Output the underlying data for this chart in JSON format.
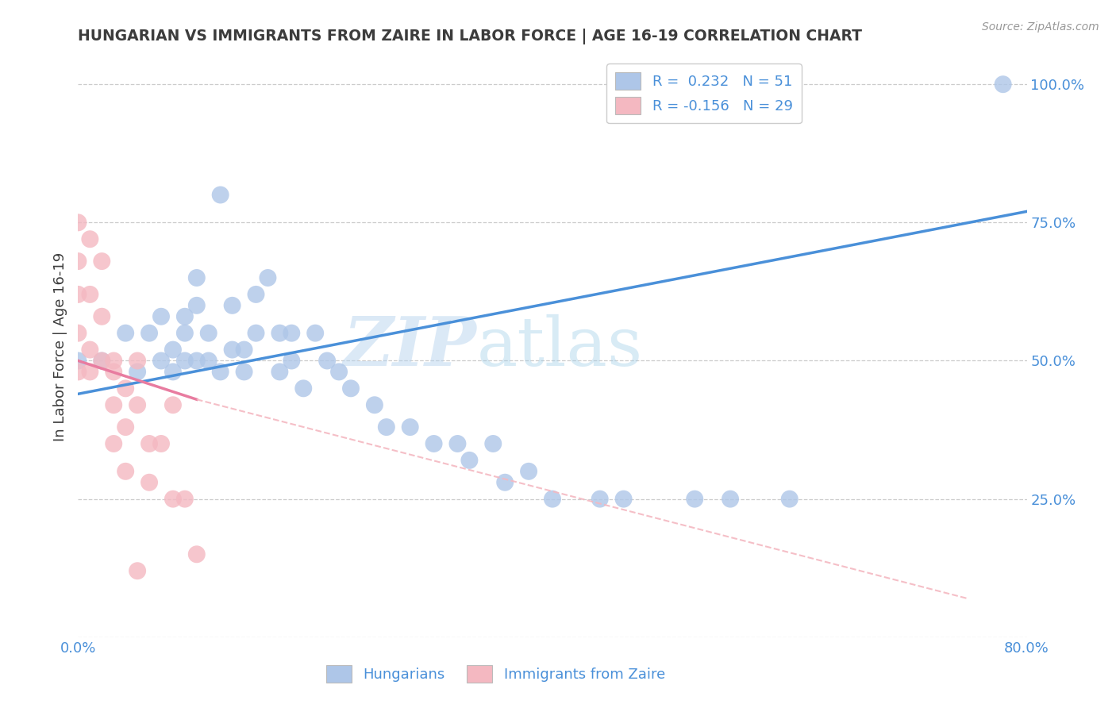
{
  "title": "HUNGARIAN VS IMMIGRANTS FROM ZAIRE IN LABOR FORCE | AGE 16-19 CORRELATION CHART",
  "source": "Source: ZipAtlas.com",
  "xlabel": "",
  "ylabel": "In Labor Force | Age 16-19",
  "xlim": [
    0.0,
    0.8
  ],
  "ylim": [
    0.0,
    1.05
  ],
  "y_ticks": [
    0.0,
    0.25,
    0.5,
    0.75,
    1.0
  ],
  "y_tick_labels": [
    "",
    "25.0%",
    "50.0%",
    "75.0%",
    "100.0%"
  ],
  "blue_scatter_x": [
    0.0,
    0.02,
    0.04,
    0.05,
    0.06,
    0.07,
    0.07,
    0.08,
    0.08,
    0.09,
    0.09,
    0.09,
    0.1,
    0.1,
    0.1,
    0.11,
    0.11,
    0.12,
    0.12,
    0.13,
    0.13,
    0.14,
    0.14,
    0.15,
    0.15,
    0.16,
    0.17,
    0.17,
    0.18,
    0.18,
    0.19,
    0.2,
    0.21,
    0.22,
    0.23,
    0.25,
    0.26,
    0.28,
    0.3,
    0.32,
    0.33,
    0.35,
    0.36,
    0.38,
    0.4,
    0.44,
    0.46,
    0.52,
    0.55,
    0.6,
    0.78
  ],
  "blue_scatter_y": [
    0.5,
    0.5,
    0.55,
    0.48,
    0.55,
    0.5,
    0.58,
    0.52,
    0.48,
    0.58,
    0.55,
    0.5,
    0.65,
    0.6,
    0.5,
    0.55,
    0.5,
    0.8,
    0.48,
    0.6,
    0.52,
    0.52,
    0.48,
    0.62,
    0.55,
    0.65,
    0.55,
    0.48,
    0.55,
    0.5,
    0.45,
    0.55,
    0.5,
    0.48,
    0.45,
    0.42,
    0.38,
    0.38,
    0.35,
    0.35,
    0.32,
    0.35,
    0.28,
    0.3,
    0.25,
    0.25,
    0.25,
    0.25,
    0.25,
    0.25,
    1.0
  ],
  "pink_scatter_x": [
    0.0,
    0.0,
    0.0,
    0.0,
    0.0,
    0.01,
    0.01,
    0.01,
    0.01,
    0.02,
    0.02,
    0.02,
    0.03,
    0.03,
    0.03,
    0.03,
    0.04,
    0.04,
    0.04,
    0.05,
    0.05,
    0.05,
    0.06,
    0.06,
    0.07,
    0.08,
    0.08,
    0.09,
    0.1
  ],
  "pink_scatter_y": [
    0.75,
    0.68,
    0.62,
    0.55,
    0.48,
    0.72,
    0.62,
    0.52,
    0.48,
    0.68,
    0.58,
    0.5,
    0.5,
    0.48,
    0.42,
    0.35,
    0.45,
    0.38,
    0.3,
    0.5,
    0.42,
    0.12,
    0.35,
    0.28,
    0.35,
    0.42,
    0.25,
    0.25,
    0.15
  ],
  "blue_line_x": [
    0.0,
    0.8
  ],
  "blue_line_y": [
    0.44,
    0.77
  ],
  "pink_solid_line_x": [
    0.0,
    0.1
  ],
  "pink_solid_line_y": [
    0.5,
    0.43
  ],
  "pink_dash_line_x": [
    0.1,
    0.75
  ],
  "pink_dash_line_y": [
    0.43,
    0.07
  ],
  "blue_scatter_color": "#aec6e8",
  "pink_scatter_color": "#f4b8c1",
  "blue_line_color": "#4a90d9",
  "pink_line_color": "#e87ca0",
  "pink_dash_line_color": "#f4b8c1",
  "watermark_zip": "ZIP",
  "watermark_atlas": "atlas",
  "title_color": "#3c3c3c",
  "grid_color": "#cccccc",
  "background_color": "#ffffff",
  "legend_blue_label": "R =  0.232   N = 51",
  "legend_pink_label": "R = -0.156   N = 29",
  "bottom_legend_blue": "Hungarians",
  "bottom_legend_pink": "Immigrants from Zaire"
}
